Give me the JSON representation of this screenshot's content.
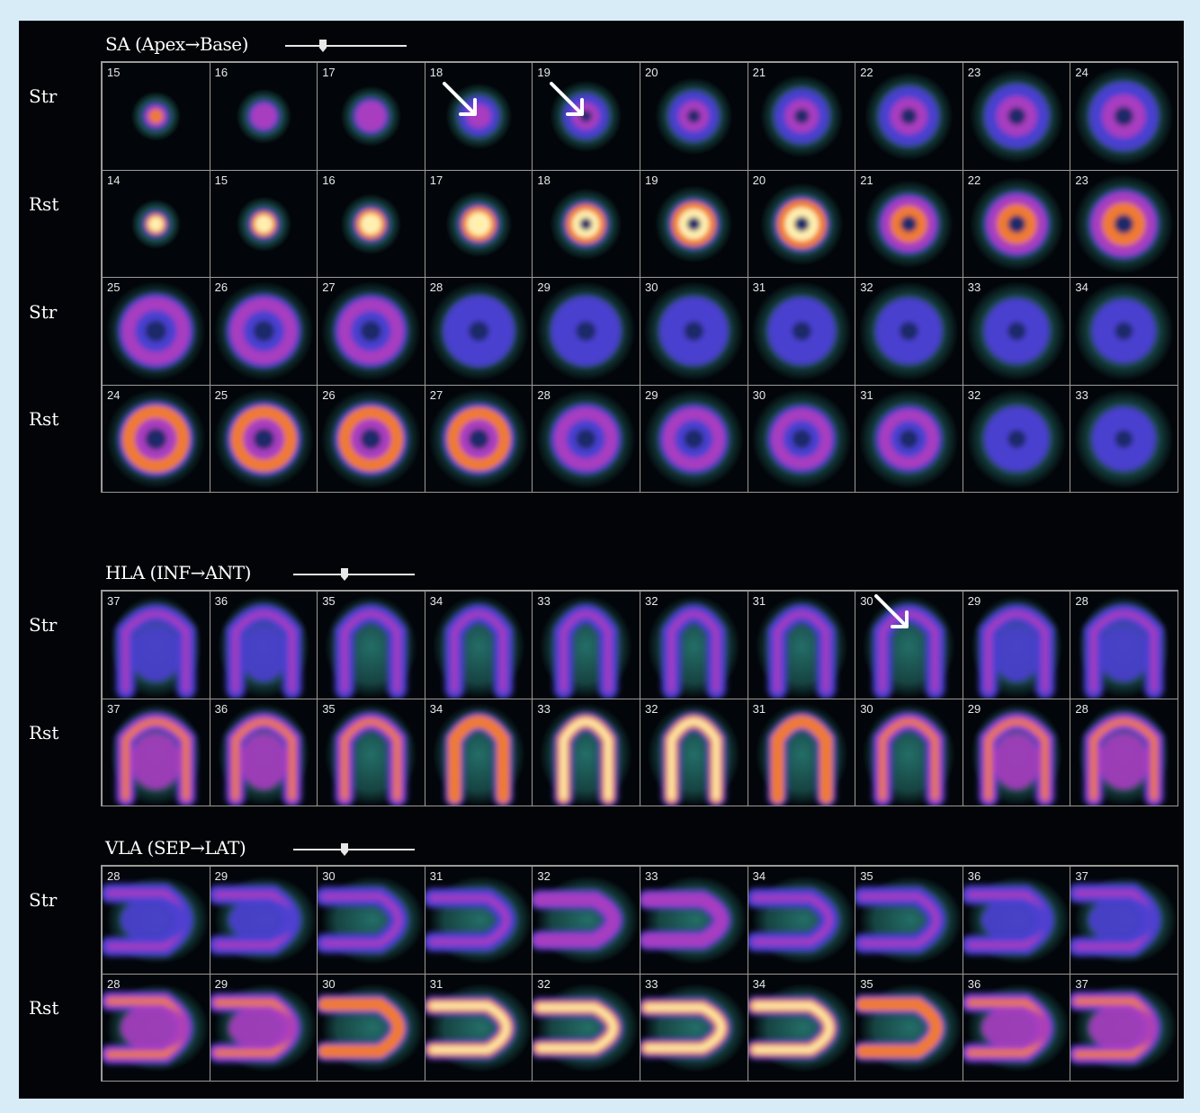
{
  "sections": [
    {
      "id": "sa",
      "title": "SA (Apex→Base)",
      "view": "sa",
      "rows": [
        {
          "label": "Str",
          "slices": [
            "15",
            "16",
            "17",
            "18",
            "19",
            "20",
            "21",
            "22",
            "23",
            "24"
          ]
        },
        {
          "label": "Rst",
          "slices": [
            "14",
            "15",
            "16",
            "17",
            "18",
            "19",
            "20",
            "21",
            "22",
            "23"
          ]
        },
        {
          "label": "Str",
          "slices": [
            "25",
            "26",
            "27",
            "28",
            "29",
            "30",
            "31",
            "32",
            "33",
            "34"
          ]
        },
        {
          "label": "Rst",
          "slices": [
            "24",
            "25",
            "26",
            "27",
            "28",
            "29",
            "30",
            "31",
            "32",
            "33"
          ]
        }
      ]
    },
    {
      "id": "hla",
      "title": "HLA (INF→ANT)",
      "view": "hla",
      "rows": [
        {
          "label": "Str",
          "slices": [
            "37",
            "36",
            "35",
            "34",
            "33",
            "32",
            "31",
            "30",
            "29",
            "28"
          ]
        },
        {
          "label": "Rst",
          "slices": [
            "37",
            "36",
            "35",
            "34",
            "33",
            "32",
            "31",
            "30",
            "29",
            "28"
          ]
        }
      ]
    },
    {
      "id": "vla",
      "title": "VLA (SEP→LAT)",
      "view": "vla",
      "rows": [
        {
          "label": "Str",
          "slices": [
            "28",
            "29",
            "30",
            "31",
            "32",
            "33",
            "34",
            "35",
            "36",
            "37"
          ]
        },
        {
          "label": "Rst",
          "slices": [
            "28",
            "29",
            "30",
            "31",
            "32",
            "33",
            "34",
            "35",
            "36",
            "37"
          ]
        }
      ]
    }
  ],
  "arrows": [
    {
      "section": "sa",
      "row": 0,
      "col": 3
    },
    {
      "section": "sa",
      "row": 0,
      "col": 4
    },
    {
      "section": "hla",
      "row": 0,
      "col": 7
    }
  ],
  "colors": {
    "page_border": "#d8ecf8",
    "panel": "#030407",
    "grid_line": "#9a9a9a",
    "text": "#ffffff",
    "halo": "#2f8f86",
    "wall_low": "#4a3fd0",
    "wall_mid": "#a83cc0",
    "wall_high": "#f07a30",
    "wall_peak": "#fff0b0"
  }
}
